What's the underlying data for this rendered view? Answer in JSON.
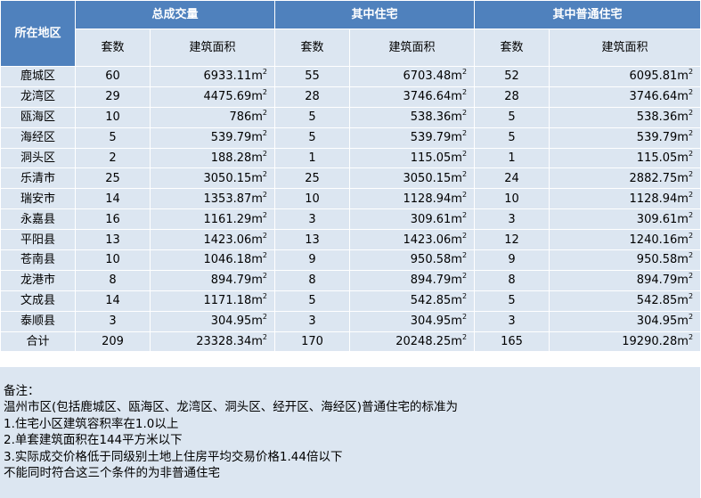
{
  "header": {
    "region": "所在地区",
    "groups": [
      "总成交量",
      "其中住宅",
      "其中普通住宅"
    ],
    "count_label": "套数",
    "area_label": "建筑面积"
  },
  "area_unit": "m²",
  "rows": [
    {
      "region": "鹿城区",
      "total_count": "60",
      "total_area": "6933.11m",
      "res_count": "55",
      "res_area": "6703.48m",
      "ord_count": "52",
      "ord_area": "6095.81m"
    },
    {
      "region": "龙湾区",
      "total_count": "29",
      "total_area": "4475.69m",
      "res_count": "28",
      "res_area": "3746.64m",
      "ord_count": "28",
      "ord_area": "3746.64m"
    },
    {
      "region": "瓯海区",
      "total_count": "10",
      "total_area": "786m",
      "res_count": "5",
      "res_area": "538.36m",
      "ord_count": "5",
      "ord_area": "538.36m"
    },
    {
      "region": "海经区",
      "total_count": "5",
      "total_area": "539.79m",
      "res_count": "5",
      "res_area": "539.79m",
      "ord_count": "5",
      "ord_area": "539.79m"
    },
    {
      "region": "洞头区",
      "total_count": "2",
      "total_area": "188.28m",
      "res_count": "1",
      "res_area": "115.05m",
      "ord_count": "1",
      "ord_area": "115.05m"
    },
    {
      "region": "乐清市",
      "total_count": "25",
      "total_area": "3050.15m",
      "res_count": "25",
      "res_area": "3050.15m",
      "ord_count": "24",
      "ord_area": "2882.75m"
    },
    {
      "region": "瑞安市",
      "total_count": "14",
      "total_area": "1353.87m",
      "res_count": "10",
      "res_area": "1128.94m",
      "ord_count": "10",
      "ord_area": "1128.94m"
    },
    {
      "region": "永嘉县",
      "total_count": "16",
      "total_area": "1161.29m",
      "res_count": "3",
      "res_area": "309.61m",
      "ord_count": "3",
      "ord_area": "309.61m"
    },
    {
      "region": "平阳县",
      "total_count": "13",
      "total_area": "1423.06m",
      "res_count": "13",
      "res_area": "1423.06m",
      "ord_count": "12",
      "ord_area": "1240.16m"
    },
    {
      "region": "苍南县",
      "total_count": "10",
      "total_area": "1046.18m",
      "res_count": "9",
      "res_area": "950.58m",
      "ord_count": "9",
      "ord_area": "950.58m"
    },
    {
      "region": "龙港市",
      "total_count": "8",
      "total_area": "894.79m",
      "res_count": "8",
      "res_area": "894.79m",
      "ord_count": "8",
      "ord_area": "894.79m"
    },
    {
      "region": "文成县",
      "total_count": "14",
      "total_area": "1171.18m",
      "res_count": "5",
      "res_area": "542.85m",
      "ord_count": "5",
      "ord_area": "542.85m"
    },
    {
      "region": "泰顺县",
      "total_count": "3",
      "total_area": "304.95m",
      "res_count": "3",
      "res_area": "304.95m",
      "ord_count": "3",
      "ord_area": "304.95m"
    }
  ],
  "total": {
    "label": "合计",
    "total_count": "209",
    "total_area": "23328.34m",
    "res_count": "170",
    "res_area": "20248.25m",
    "ord_count": "165",
    "ord_area": "19290.28m"
  },
  "notes": [
    "备注：",
    "温州市区(包括鹿城区、瓯海区、龙湾区、洞头区、经开区、海经区)普通住宅的标准为",
    "1.住宅小区建筑容积率在1.0以上",
    "2.单套建筑面积在144平方米以下",
    "3.实际成交价格低于同级别土地上住房平均交易价格1.44倍以下",
    "不能同时符合这三个条件的为非普通住宅"
  ]
}
